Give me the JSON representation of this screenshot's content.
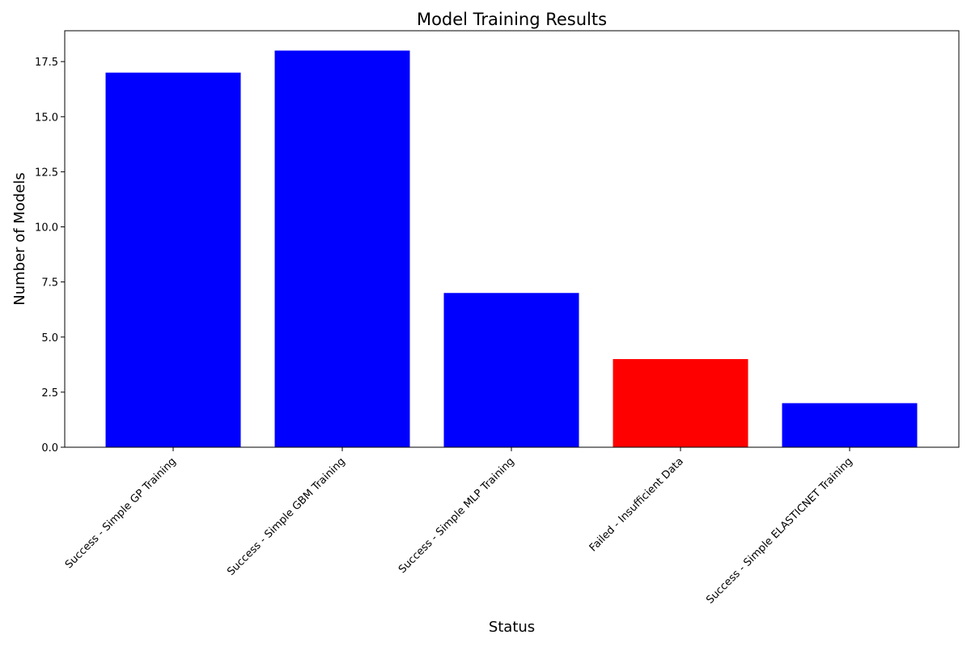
{
  "chart_data": {
    "type": "bar",
    "title": "Model Training Results",
    "xlabel": "Status",
    "ylabel": "Number of Models",
    "categories": [
      "Success - Simple GP Training",
      "Success - Simple GBM Training",
      "Success - Simple MLP Training",
      "Failed - Insufficient Data",
      "Success - Simple ELASTICNET Training"
    ],
    "values": [
      17,
      18,
      7,
      4,
      2
    ],
    "bar_colors": [
      "#0000ff",
      "#0000ff",
      "#0000ff",
      "#ff0000",
      "#0000ff"
    ],
    "ylim": [
      0,
      18.9
    ],
    "yticks": [
      0.0,
      2.5,
      5.0,
      7.5,
      10.0,
      12.5,
      15.0,
      17.5
    ],
    "ytick_labels": [
      "0.0",
      "2.5",
      "5.0",
      "7.5",
      "10.0",
      "12.5",
      "15.0",
      "17.5"
    ],
    "grid": false,
    "legend": "none"
  }
}
